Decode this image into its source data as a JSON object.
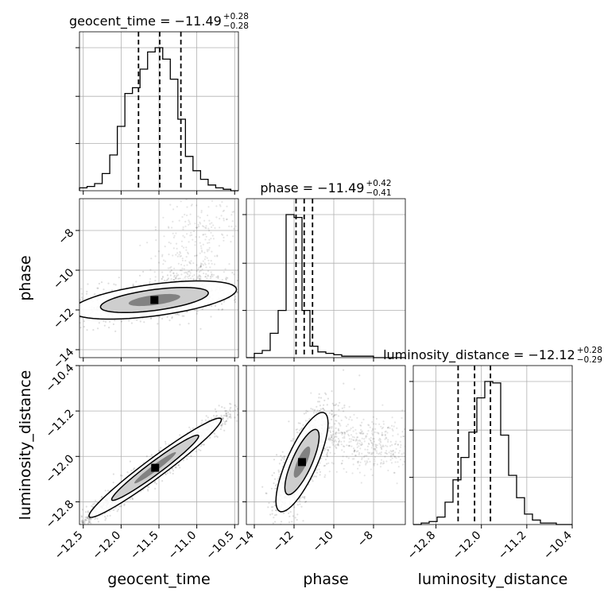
{
  "chart_data": {
    "type": "corner",
    "parameters": [
      "geocent_time",
      "phase",
      "luminosity_distance"
    ],
    "ranges": {
      "geocent_time": [
        -12.55,
        -10.45
      ],
      "phase": [
        -14.4,
        -6.4
      ],
      "luminosity_distance": [
        -13.2,
        -10.4
      ]
    },
    "ticks": {
      "geocent_time": [
        "−12.5",
        "−12.0",
        "−11.5",
        "−11.0",
        "−10.5"
      ],
      "phase": [
        "−14",
        "−12",
        "−10",
        "−8"
      ],
      "luminosity_distance": [
        "−12.8",
        "−12.0",
        "−11.2",
        "−10.4"
      ]
    },
    "tick_values": {
      "geocent_time": [
        -12.5,
        -12.0,
        -11.5,
        -11.0,
        -10.5
      ],
      "phase": [
        -14,
        -12,
        -10,
        -8
      ],
      "luminosity_distance": [
        -12.8,
        -12.0,
        -11.2,
        -10.4
      ]
    },
    "titles": [
      {
        "param": "geocent_time",
        "main": "geocent_time = −11.49",
        "upper": "+0.28",
        "lower": "−0.28"
      },
      {
        "param": "phase",
        "main": "phase = −11.49",
        "upper": "+0.42",
        "lower": "−0.41"
      },
      {
        "param": "luminosity_distance",
        "main": "luminosity_distance = −12.12",
        "upper": "+0.28",
        "lower": "−0.29"
      }
    ],
    "quantiles": {
      "geocent_time": [
        -11.77,
        -11.49,
        -11.21
      ],
      "phase": [
        -11.9,
        -11.49,
        -11.07
      ],
      "luminosity_distance": [
        -12.41,
        -12.12,
        -11.84
      ]
    },
    "histograms": {
      "geocent_time": {
        "edges_start": -12.55,
        "bin_width": 0.1,
        "counts": [
          2,
          3,
          5,
          12,
          25,
          45,
          68,
          72,
          85,
          97,
          100,
          92,
          78,
          50,
          24,
          14,
          8,
          4,
          2,
          1,
          0
        ]
      },
      "phase": {
        "edges_start": -14.4,
        "bin_width": 0.4,
        "counts": [
          0,
          3,
          5,
          17,
          33,
          100,
          98,
          33,
          8,
          4,
          3,
          2,
          1,
          1,
          1,
          1,
          0,
          0,
          0,
          0
        ]
      },
      "luminosity_distance": {
        "edges_start": -13.2,
        "bin_width": 0.14,
        "counts": [
          0,
          1,
          2,
          5,
          15,
          30,
          45,
          62,
          85,
          96,
          95,
          60,
          33,
          18,
          7,
          3,
          1,
          1,
          0,
          0
        ]
      }
    },
    "ellipses": [
      {
        "x": "geocent_time",
        "y": "phase",
        "cx": -11.56,
        "cy": -11.5,
        "rx": 0.62,
        "ry": 0.55,
        "rho": 0.55
      },
      {
        "x": "geocent_time",
        "y": "luminosity_distance",
        "cx": -11.55,
        "cy": -12.2,
        "rx": 0.5,
        "ry": 0.5,
        "rho": 0.97
      },
      {
        "x": "phase",
        "y": "luminosity_distance",
        "cx": -11.6,
        "cy": -12.1,
        "rx": 0.75,
        "ry": 0.5,
        "rho": 0.78
      }
    ],
    "grid": true
  }
}
